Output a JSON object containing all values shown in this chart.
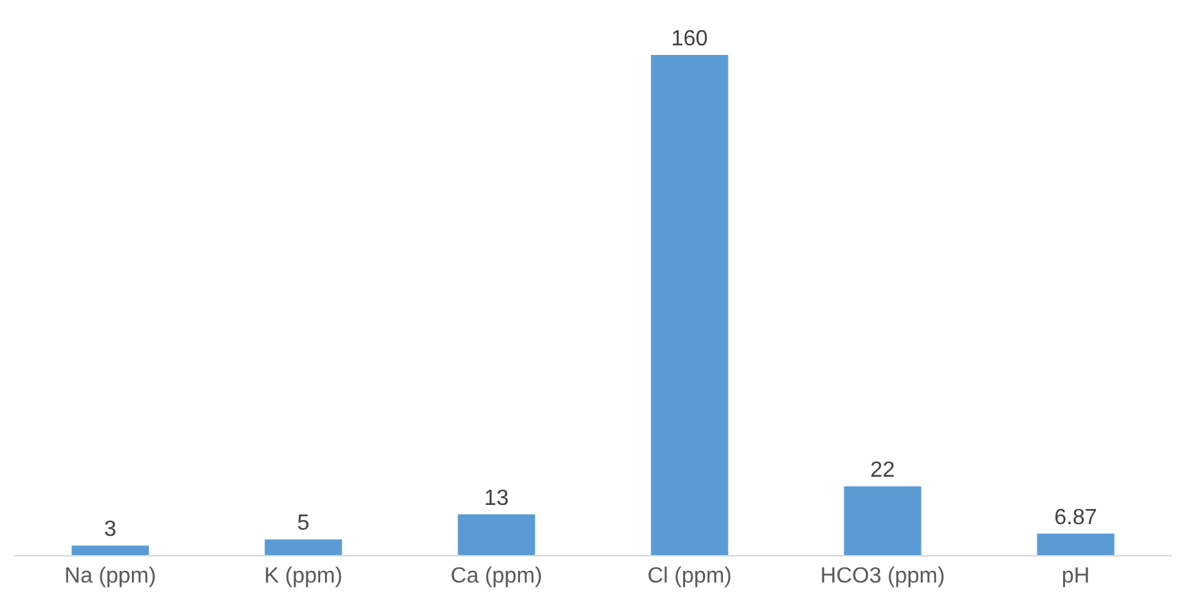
{
  "chart_data": {
    "type": "bar",
    "categories": [
      "Na (ppm)",
      "K (ppm)",
      "Ca (ppm)",
      "Cl (ppm)",
      "HCO3 (ppm)",
      "pH"
    ],
    "values": [
      3,
      5,
      13,
      160,
      22,
      6.87
    ],
    "color": "#5b9bd5",
    "data_labels": true,
    "legend": false
  }
}
